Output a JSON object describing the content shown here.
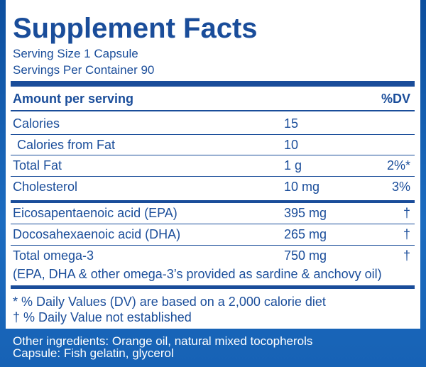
{
  "header": {
    "title": "Supplement Facts",
    "serving_size": "Serving Size 1 Capsule",
    "servings_per_container": "Servings Per Container 90"
  },
  "table": {
    "headers": [
      "Amount per serving",
      "%DV"
    ],
    "rows": [
      [
        "Calories",
        "15"
      ],
      [
        "Calories from Fat",
        "10"
      ],
      [
        "Total Fat",
        "1 g",
        "2%*"
      ],
      [
        "Cholesterol",
        "10 mg",
        "3%"
      ],
      [
        "Eicosapentaenoic acid (EPA)",
        "395 mg",
        "†"
      ],
      [
        "Docosahexaenoic acid (DHA)",
        "265 mg",
        "†"
      ],
      [
        "Total omega-3",
        "750 mg",
        "†"
      ]
    ],
    "note": "(EPA, DHA & other omega-3’s provided as sardine & anchovy oil)"
  },
  "footnotes": [
    "* % Daily Values (DV) are based on a 2,000 calorie diet",
    "† % Daily Value not established"
  ],
  "other": [
    "Other ingredients: Orange oil, natural mixed tocopherols",
    "Capsule: Fish gelatin, glycerol"
  ]
}
